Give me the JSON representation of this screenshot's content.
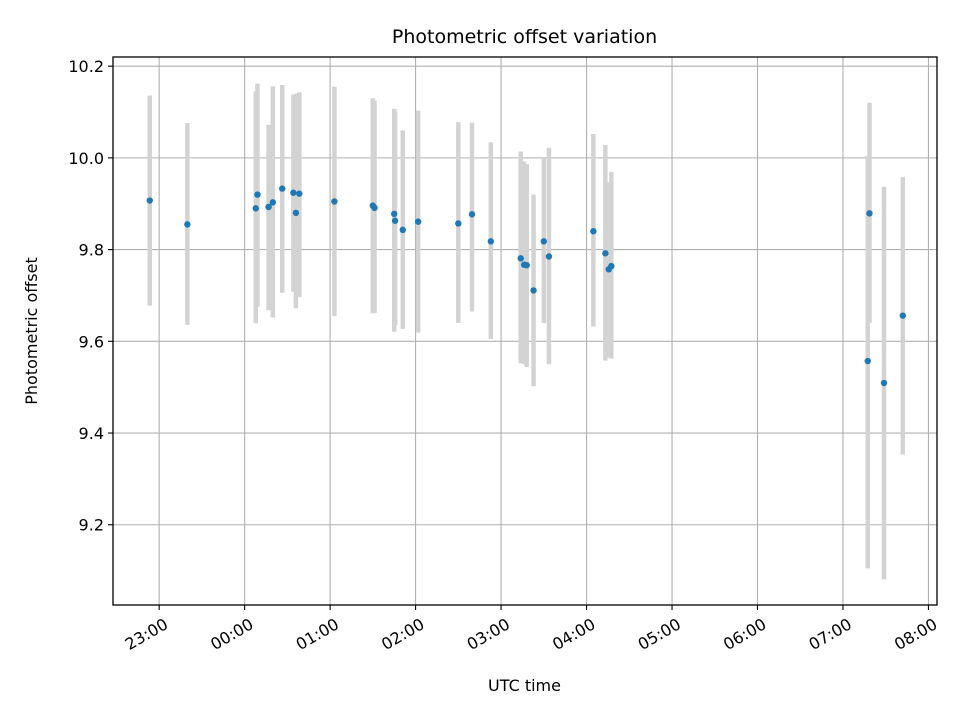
{
  "chart_data": {
    "type": "scatter",
    "title": "Photometric offset variation",
    "xlabel": "UTC time",
    "ylabel": "Photometric offset",
    "colors": {
      "points": "#1f77b4",
      "errorbars": "#d3d3d3",
      "grid": "#b0b0b0"
    },
    "grid": true,
    "x_unit": "hours relative to 00:00 UTC",
    "xlim": [
      -1.54,
      8.1
    ],
    "ylim": [
      9.025,
      10.22
    ],
    "x_ticks": [
      {
        "value": -1,
        "label": "23:00"
      },
      {
        "value": 0,
        "label": "00:00"
      },
      {
        "value": 1,
        "label": "01:00"
      },
      {
        "value": 2,
        "label": "02:00"
      },
      {
        "value": 3,
        "label": "03:00"
      },
      {
        "value": 4,
        "label": "04:00"
      },
      {
        "value": 5,
        "label": "05:00"
      },
      {
        "value": 6,
        "label": "06:00"
      },
      {
        "value": 7,
        "label": "07:00"
      },
      {
        "value": 8,
        "label": "08:00"
      }
    ],
    "y_ticks": [
      {
        "value": 9.2,
        "label": "9.2"
      },
      {
        "value": 9.4,
        "label": "9.4"
      },
      {
        "value": 9.6,
        "label": "9.6"
      },
      {
        "value": 9.8,
        "label": "9.8"
      },
      {
        "value": 10.0,
        "label": "10.0"
      },
      {
        "value": 10.2,
        "label": "10.2"
      }
    ],
    "points": [
      {
        "x": -1.11,
        "y": 9.907,
        "err_low": 9.678,
        "err_high": 10.136
      },
      {
        "x": -0.67,
        "y": 9.855,
        "err_low": 9.636,
        "err_high": 10.076
      },
      {
        "x": 0.13,
        "y": 9.89,
        "err_low": 9.639,
        "err_high": 10.145
      },
      {
        "x": 0.15,
        "y": 9.92,
        "err_low": 9.675,
        "err_high": 10.162
      },
      {
        "x": 0.28,
        "y": 9.893,
        "err_low": 9.668,
        "err_high": 10.072
      },
      {
        "x": 0.33,
        "y": 9.903,
        "err_low": 9.652,
        "err_high": 10.156
      },
      {
        "x": 0.44,
        "y": 9.933,
        "err_low": 9.706,
        "err_high": 10.159
      },
      {
        "x": 0.57,
        "y": 9.924,
        "err_low": 9.708,
        "err_high": 10.138
      },
      {
        "x": 0.6,
        "y": 9.88,
        "err_low": 9.672,
        "err_high": 10.14
      },
      {
        "x": 0.64,
        "y": 9.922,
        "err_low": 9.696,
        "err_high": 10.143
      },
      {
        "x": 1.05,
        "y": 9.905,
        "err_low": 9.655,
        "err_high": 10.155
      },
      {
        "x": 1.5,
        "y": 9.896,
        "err_low": 9.661,
        "err_high": 10.13
      },
      {
        "x": 1.52,
        "y": 9.891,
        "err_low": 9.662,
        "err_high": 10.125
      },
      {
        "x": 1.75,
        "y": 9.878,
        "err_low": 9.621,
        "err_high": 10.107
      },
      {
        "x": 1.76,
        "y": 9.863,
        "err_low": 9.635,
        "err_high": 10.101
      },
      {
        "x": 1.85,
        "y": 9.843,
        "err_low": 9.627,
        "err_high": 10.06
      },
      {
        "x": 2.03,
        "y": 9.861,
        "err_low": 9.619,
        "err_high": 10.103
      },
      {
        "x": 2.5,
        "y": 9.857,
        "err_low": 9.64,
        "err_high": 10.078
      },
      {
        "x": 2.66,
        "y": 9.877,
        "err_low": 9.665,
        "err_high": 10.077
      },
      {
        "x": 2.88,
        "y": 9.818,
        "err_low": 9.605,
        "err_high": 10.034
      },
      {
        "x": 3.23,
        "y": 9.781,
        "err_low": 9.552,
        "err_high": 10.014
      },
      {
        "x": 3.27,
        "y": 9.767,
        "err_low": 9.55,
        "err_high": 9.992
      },
      {
        "x": 3.3,
        "y": 9.766,
        "err_low": 9.544,
        "err_high": 9.986
      },
      {
        "x": 3.38,
        "y": 9.711,
        "err_low": 9.502,
        "err_high": 9.92
      },
      {
        "x": 3.5,
        "y": 9.818,
        "err_low": 9.64,
        "err_high": 9.998
      },
      {
        "x": 3.56,
        "y": 9.785,
        "err_low": 9.55,
        "err_high": 10.022
      },
      {
        "x": 4.08,
        "y": 9.84,
        "err_low": 9.632,
        "err_high": 10.052
      },
      {
        "x": 4.22,
        "y": 9.792,
        "err_low": 9.558,
        "err_high": 10.028
      },
      {
        "x": 4.26,
        "y": 9.757,
        "err_low": 9.565,
        "err_high": 9.947
      },
      {
        "x": 4.29,
        "y": 9.764,
        "err_low": 9.562,
        "err_high": 9.969
      },
      {
        "x": 7.29,
        "y": 9.557,
        "err_low": 9.105,
        "err_high": 10.004
      },
      {
        "x": 7.31,
        "y": 9.879,
        "err_low": 9.64,
        "err_high": 10.12
      },
      {
        "x": 7.48,
        "y": 9.509,
        "err_low": 9.081,
        "err_high": 9.937
      },
      {
        "x": 7.7,
        "y": 9.656,
        "err_low": 9.353,
        "err_high": 9.958
      }
    ]
  }
}
